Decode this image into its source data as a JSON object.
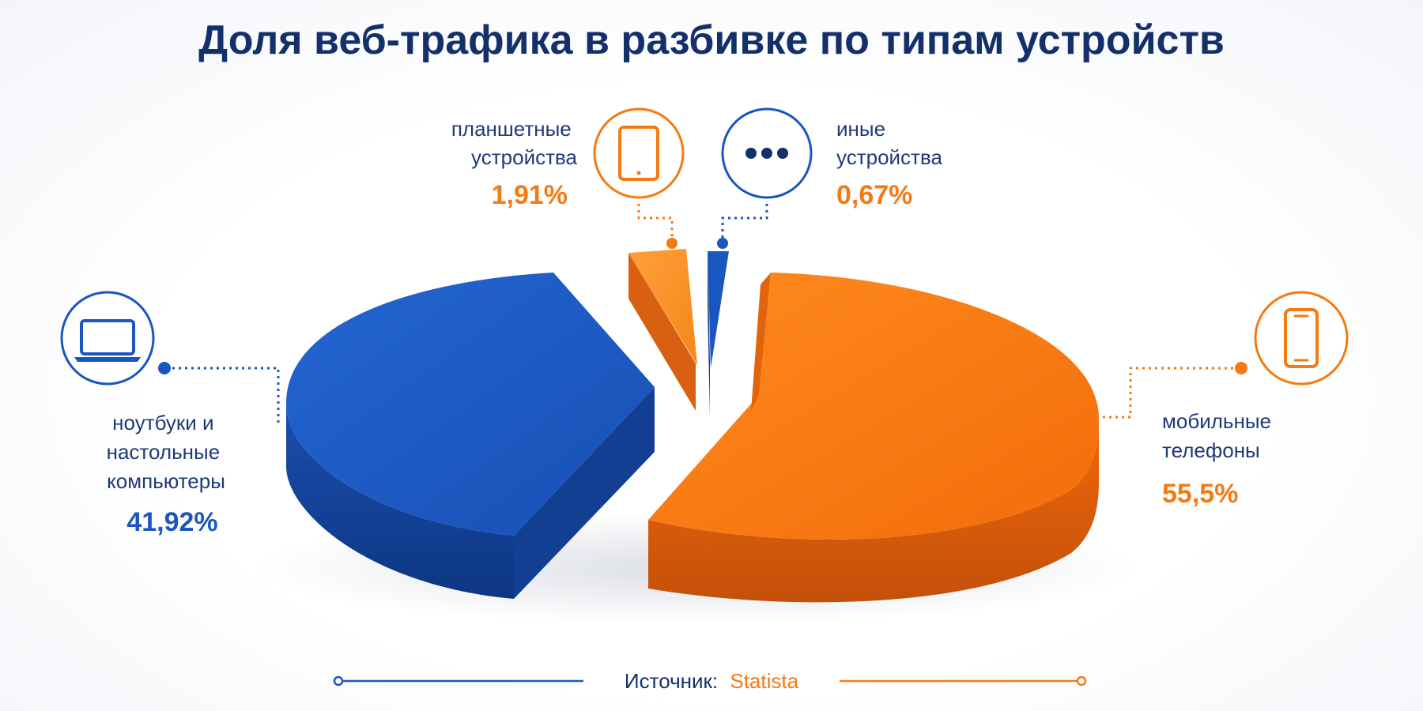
{
  "chart_data": {
    "type": "pie",
    "title": "Доля веб-трафика в разбивке по типам устройств",
    "slices": [
      {
        "label_lines": [
          "мобильные",
          "телефоны"
        ],
        "value": 55.5,
        "value_label": "55,5%",
        "color": "#f47a12",
        "icon": "smartphone-icon"
      },
      {
        "label_lines": [
          "ноутбуки и",
          "настольные",
          "компьютеры"
        ],
        "value": 41.92,
        "value_label": "41,92%",
        "color": "#1a56c0",
        "icon": "laptop-icon"
      },
      {
        "label_lines": [
          "планшетные",
          "устройства"
        ],
        "value": 1.91,
        "value_label": "1,91%",
        "color": "#f7901e",
        "icon": "tablet-icon"
      },
      {
        "label_lines": [
          "иные",
          "устройства"
        ],
        "value": 0.67,
        "value_label": "0,67%",
        "color": "#1a56c0",
        "icon": "more-dots-icon"
      }
    ],
    "source_label": "Источник:",
    "source_name": "Statista"
  },
  "colors": {
    "title": "#14306b",
    "text": "#1e3a78",
    "orange": "#f47a12",
    "orange_light": "#f7901e",
    "blue": "#1a56c0",
    "blue_dark": "#0f3a8c"
  }
}
